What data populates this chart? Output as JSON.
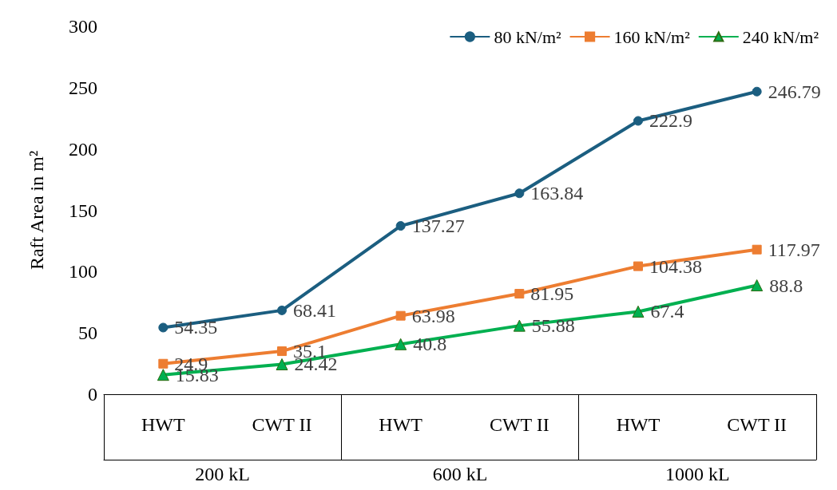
{
  "chart_data": {
    "type": "line",
    "ylabel": "Raft Area in m²",
    "categories": [
      "HWT",
      "CWT II",
      "HWT",
      "CWT II",
      "HWT",
      "CWT II"
    ],
    "annotations": [
      "200 kL",
      "600 kL",
      "1000 kL"
    ],
    "series": [
      {
        "name": "80 kN/m²",
        "color": "#1b5e80",
        "marker": "circle",
        "values": [
          54.35,
          68.41,
          137.27,
          163.84,
          222.9,
          246.79
        ]
      },
      {
        "name": "160 kN/m²",
        "color": "#ed7d31",
        "marker": "square",
        "values": [
          24.9,
          35.1,
          63.98,
          81.95,
          104.38,
          117.97
        ]
      },
      {
        "name": "240 kN/m²",
        "color": "#00b050",
        "marker": "triangle",
        "values": [
          15.83,
          24.42,
          40.8,
          55.88,
          67.4,
          88.8
        ]
      }
    ],
    "ylim": [
      0,
      300
    ],
    "yticks": [
      0,
      50,
      100,
      150,
      200,
      250,
      300
    ],
    "grid": false,
    "legend": "top right",
    "data_labels": true,
    "line_style": "solid"
  }
}
